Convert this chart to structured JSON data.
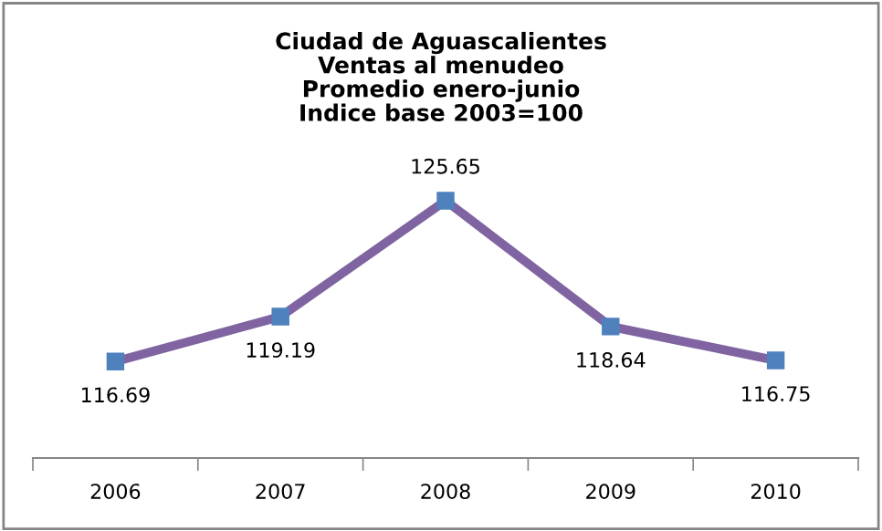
{
  "chart_data": {
    "type": "line",
    "title": "Ciudad de Aguascalientes\nVentas al menudeo\nPromedio enero-junio\nIndice base 2003=100",
    "categories": [
      "2006",
      "2007",
      "2008",
      "2009",
      "2010"
    ],
    "series": [
      {
        "color": "#8064a2",
        "values": [
          116.69,
          119.19,
          125.65,
          118.64,
          116.75
        ]
      }
    ],
    "data_labels": true,
    "marker": "square",
    "grid": false,
    "legend": false
  }
}
